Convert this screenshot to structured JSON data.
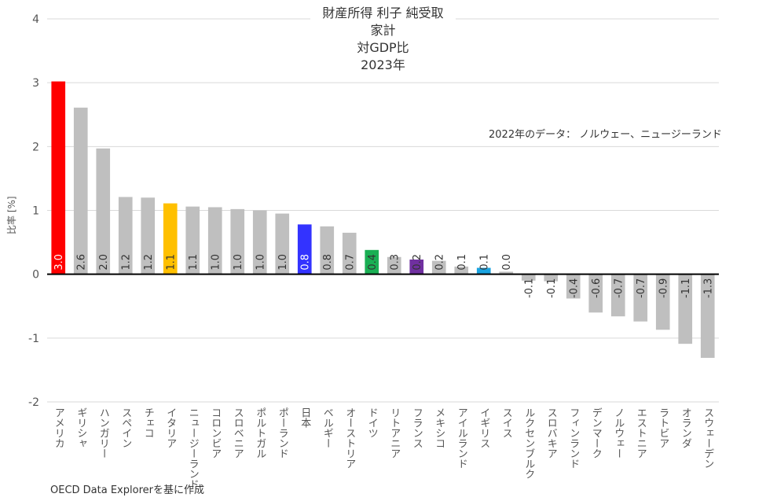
{
  "chart_data": {
    "type": "bar",
    "title": [
      "財産所得 利子 純受取",
      "家計",
      "対GDP比",
      "2023年"
    ],
    "xlabel": "",
    "ylabel": "比率 [%]",
    "ylim": [
      -2,
      4
    ],
    "yticks": [
      4,
      3,
      2,
      1,
      0,
      -1,
      -2
    ],
    "grid": true,
    "categories": [
      "アメリカ",
      "ギリシャ",
      "ハンガリー",
      "スペイン",
      "チェコ",
      "イタリア",
      "ニュージーランド",
      "コロンビア",
      "スロベニア",
      "ポルトガル",
      "ポーランド",
      "日本",
      "ベルギー",
      "オーストリア",
      "ドイツ",
      "リトアニア",
      "フランス",
      "メキシコ",
      "アイルランド",
      "イギリス",
      "スイス",
      "ルクセンブルク",
      "スロバキア",
      "フィンランド",
      "デンマーク",
      "ノルウェー",
      "エストニア",
      "ラトビア",
      "オランダ",
      "スウェーデン"
    ],
    "values": [
      3.02,
      2.61,
      1.97,
      1.21,
      1.2,
      1.11,
      1.06,
      1.05,
      1.02,
      1.0,
      0.95,
      0.78,
      0.75,
      0.65,
      0.38,
      0.27,
      0.23,
      0.21,
      0.12,
      0.1,
      0.04,
      -0.1,
      -0.11,
      -0.38,
      -0.6,
      -0.66,
      -0.74,
      -0.87,
      -1.09,
      -1.31
    ],
    "data_labels": [
      "3.0",
      "2.6",
      "2.0",
      "1.2",
      "1.2",
      "1.1",
      "1.1",
      "1.0",
      "1.0",
      "1.0",
      "1.0",
      "0.8",
      "0.8",
      "0.7",
      "0.4",
      "0.3",
      "0.2",
      "0.2",
      "0.1",
      "0.1",
      "0.0",
      "-0.1",
      "-0.1",
      "-0.4",
      "-0.6",
      "-0.7",
      "-0.7",
      "-0.9",
      "-1.1",
      "-1.3"
    ],
    "colors": {
      "default": "#bfbfbf",
      "アメリカ": "#ff0000",
      "イタリア": "#ffc000",
      "日本": "#3333ff",
      "ドイツ": "#1aaf54",
      "フランス": "#7030a0",
      "イギリス": "#1aa3e0"
    },
    "highlight_label_color": {
      "アメリカ": "#ffffff",
      "日本": "#ffffff"
    },
    "annotation": "2022年のデータ： ノルウェー、ニュージーランド",
    "source": "OECD Data Explorerを基に作成"
  }
}
